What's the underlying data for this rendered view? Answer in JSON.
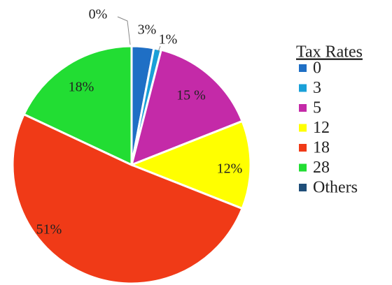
{
  "chart_data": {
    "type": "pie",
    "legend_title": "Tax Rates",
    "categories": [
      "0",
      "3",
      "5",
      "12",
      "18",
      "28",
      "Others"
    ],
    "values": [
      3,
      1,
      15,
      12,
      51,
      18,
      0
    ],
    "value_labels": [
      "3%",
      "1%",
      "15 %",
      "12%",
      "51%",
      "18%",
      "0%"
    ],
    "colors": [
      "#1f6fc5",
      "#1aa0d8",
      "#c42aa8",
      "#ffff00",
      "#f03a17",
      "#22dd33",
      "#1f4e79"
    ],
    "legend": "right"
  }
}
